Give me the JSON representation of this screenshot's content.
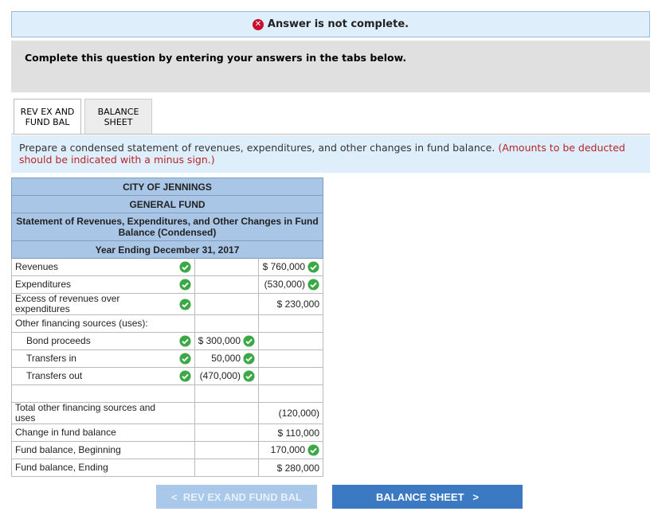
{
  "banner": "Answer is not complete.",
  "instruction": "Complete this question by entering your answers in the tabs below.",
  "tabs": [
    "REV EX AND FUND BAL",
    "BALANCE SHEET"
  ],
  "prompt": "Prepare a condensed statement of revenues, expenditures, and other changes in fund balance.",
  "prompt_note": "(Amounts to be deducted should be indicated with a minus sign.)",
  "table": {
    "header": [
      "CITY OF JENNINGS",
      "GENERAL FUND",
      "Statement of Revenues, Expenditures, and Other Changes in Fund Balance (Condensed)",
      "Year Ending December 31, 2017"
    ],
    "rows": [
      {
        "label": "Revenues",
        "indent": false,
        "cells": [
          null,
          "$ 760,000"
        ],
        "checks": [
          true,
          false,
          true
        ]
      },
      {
        "label": "Expenditures",
        "indent": false,
        "cells": [
          null,
          "(530,000)"
        ],
        "checks": [
          true,
          false,
          true
        ]
      },
      {
        "label": "Excess of revenues over expenditures",
        "indent": false,
        "cells": [
          null,
          "$ 230,000"
        ],
        "checks": [
          true,
          false,
          false
        ]
      },
      {
        "label": "Other financing sources (uses):",
        "indent": false,
        "cells": [
          null,
          null
        ],
        "checks": [
          false,
          false,
          false
        ]
      },
      {
        "label": "Bond proceeds",
        "indent": true,
        "cells": [
          "$ 300,000",
          null
        ],
        "checks": [
          true,
          true,
          false
        ]
      },
      {
        "label": "Transfers in",
        "indent": true,
        "cells": [
          "50,000",
          null
        ],
        "checks": [
          true,
          true,
          false
        ]
      },
      {
        "label": "Transfers out",
        "indent": true,
        "cells": [
          "(470,000)",
          null
        ],
        "checks": [
          true,
          true,
          false
        ]
      },
      {
        "label": null,
        "indent": false,
        "cells": [
          null,
          null
        ],
        "checks": [
          false,
          false,
          false
        ]
      },
      {
        "label": "Total other financing sources and uses",
        "indent": false,
        "cells": [
          null,
          "(120,000)"
        ],
        "checks": [
          false,
          false,
          false
        ]
      },
      {
        "label": "Change in fund balance",
        "indent": false,
        "cells": [
          null,
          "$ 110,000"
        ],
        "checks": [
          false,
          false,
          false
        ]
      },
      {
        "label": "Fund balance, Beginning",
        "indent": false,
        "cells": [
          null,
          "170,000"
        ],
        "checks": [
          false,
          false,
          true
        ]
      },
      {
        "label": "Fund balance, Ending",
        "indent": false,
        "cells": [
          null,
          "$ 280,000"
        ],
        "checks": [
          false,
          false,
          false
        ]
      }
    ]
  },
  "buttons": {
    "prev": "REV EX AND FUND BAL",
    "next": "BALANCE SHEET"
  }
}
